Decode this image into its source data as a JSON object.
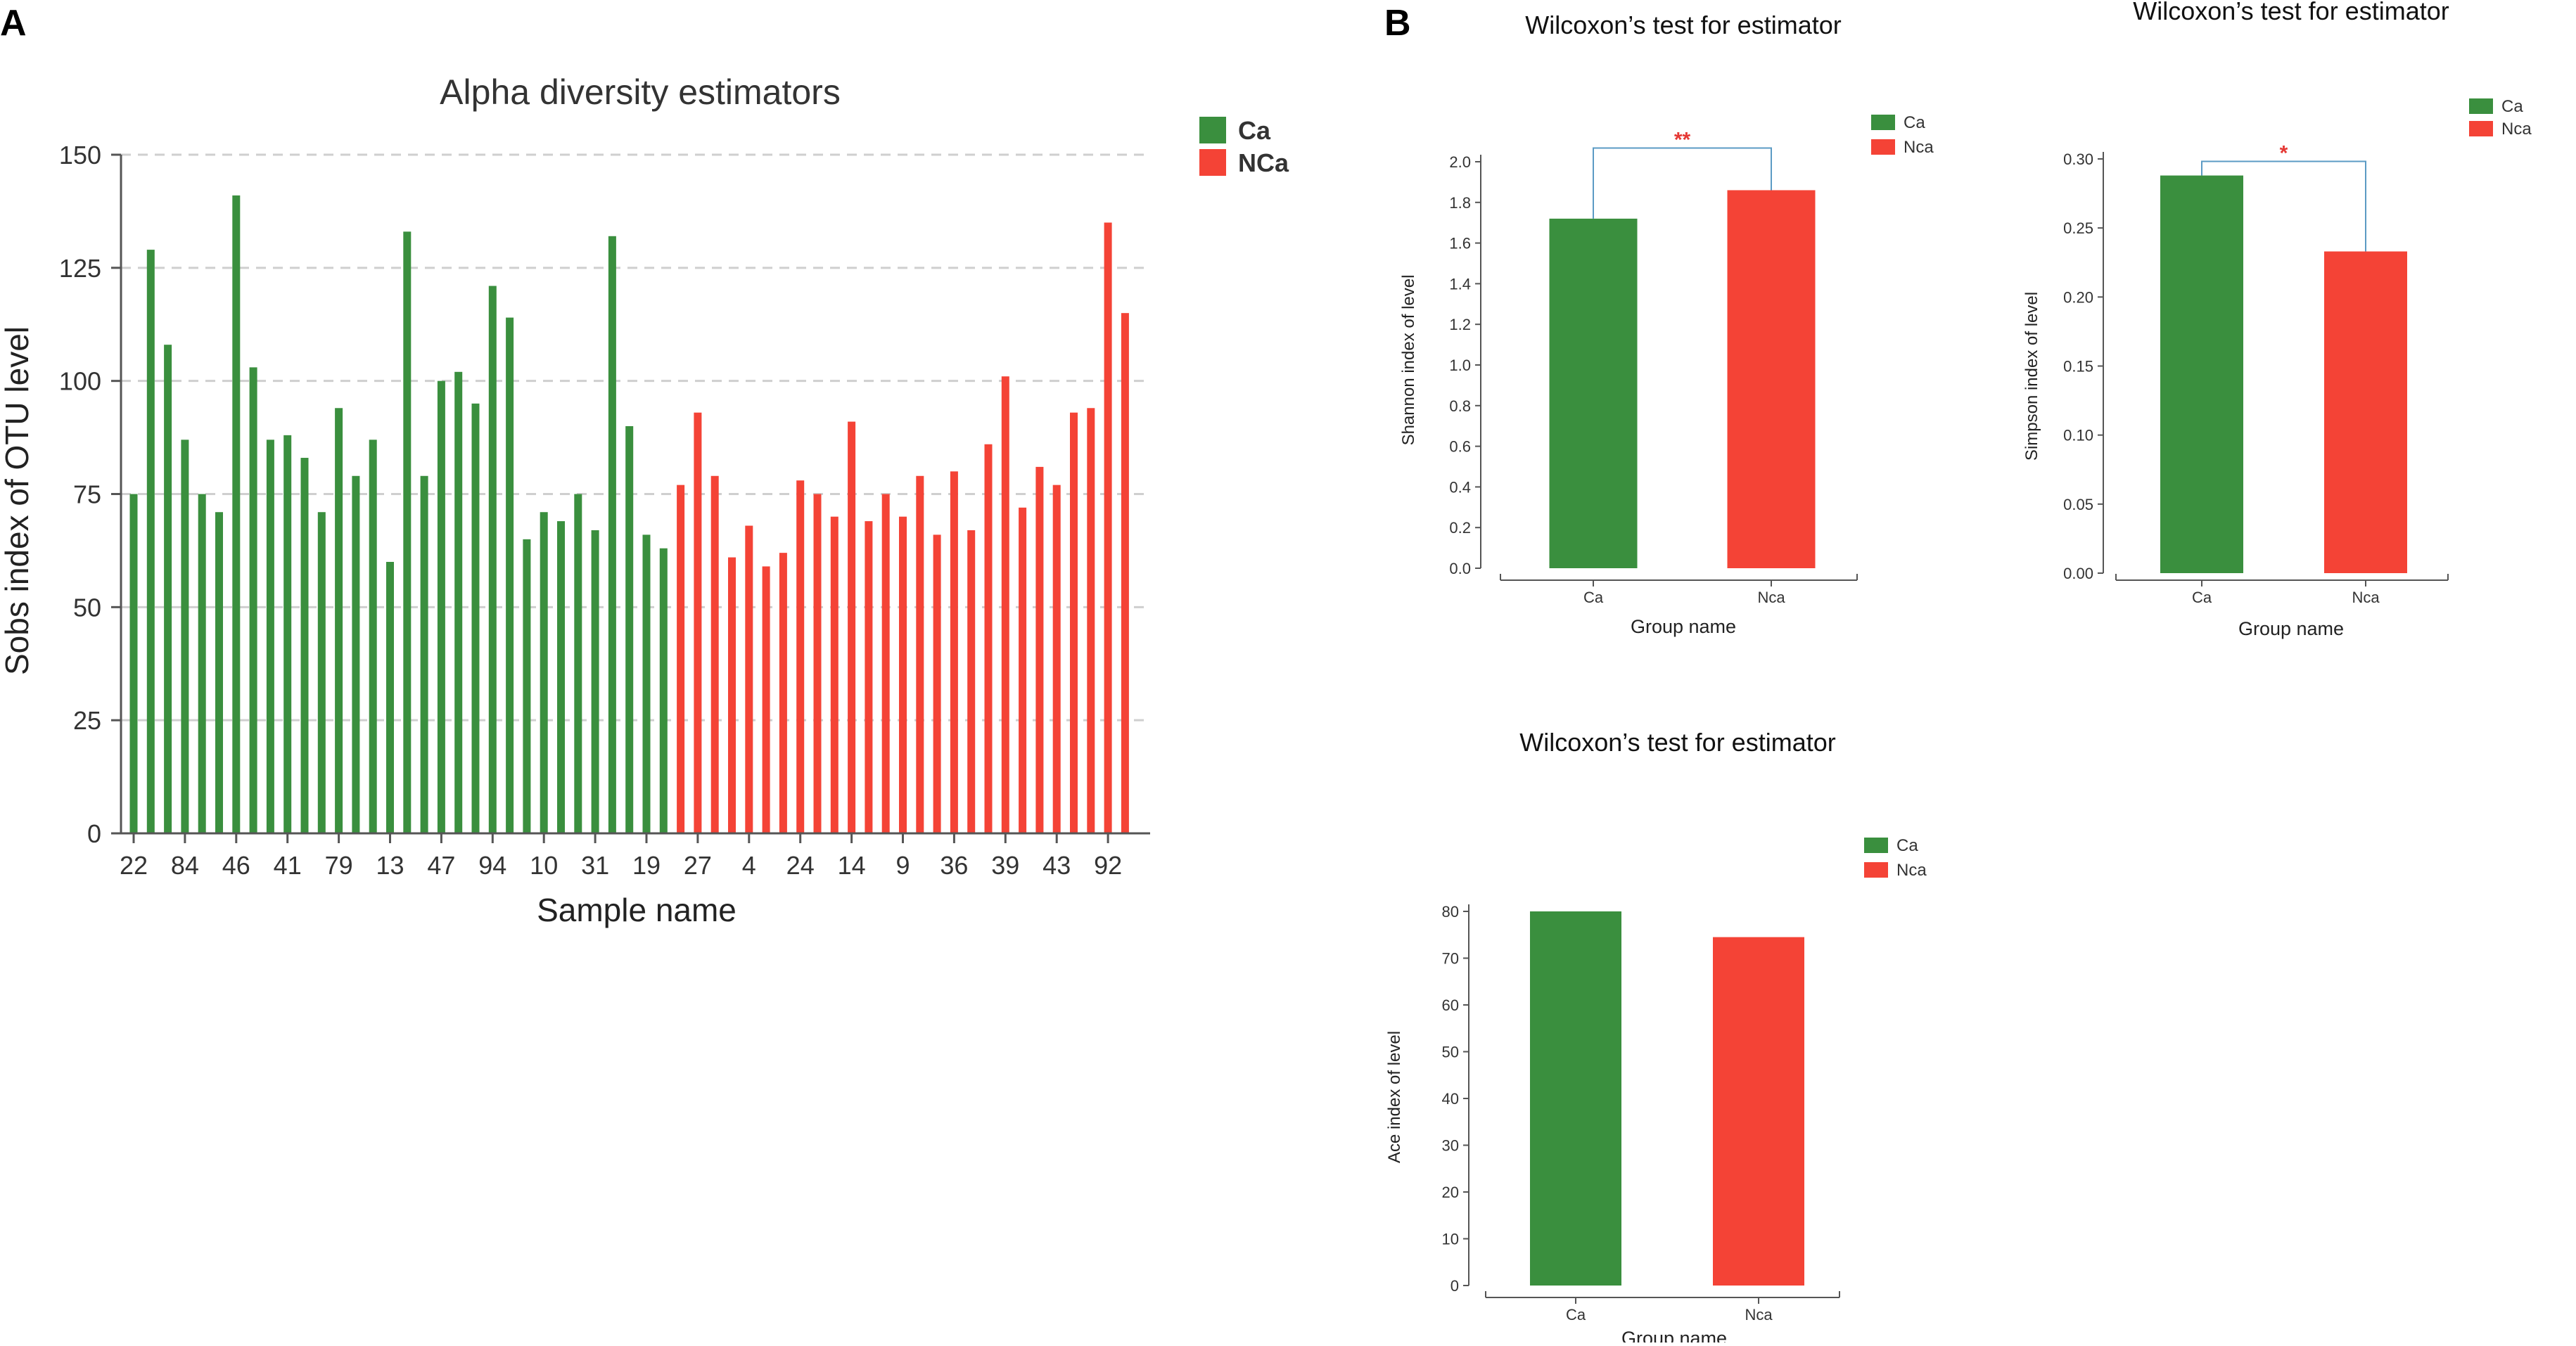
{
  "panel_labels": {
    "a": "A",
    "b": "B"
  },
  "colors": {
    "ca": "#3A8F3E",
    "nca": "#F44336",
    "sig": "#5B9BC4",
    "star": "#E53935",
    "axis": "#555555",
    "grid": "#CFCFCF"
  },
  "chart_data": [
    {
      "id": "alpha",
      "type": "bar",
      "title": "Alpha diversity estimators",
      "xlabel": "Sample name",
      "ylabel": "Sobs index of OTU level",
      "ylim": [
        0,
        150
      ],
      "yticks": [
        0,
        25,
        50,
        75,
        100,
        125,
        150
      ],
      "grid": true,
      "legend": [
        {
          "name": "Ca",
          "color": "#3A8F3E"
        },
        {
          "name": "NCa",
          "color": "#F44336"
        }
      ],
      "xtick_labels": [
        {
          "index": 0,
          "label": "22"
        },
        {
          "index": 3,
          "label": "84"
        },
        {
          "index": 6,
          "label": "46"
        },
        {
          "index": 9,
          "label": "41"
        },
        {
          "index": 12,
          "label": "79"
        },
        {
          "index": 15,
          "label": "13"
        },
        {
          "index": 18,
          "label": "47"
        },
        {
          "index": 21,
          "label": "94"
        },
        {
          "index": 24,
          "label": "10"
        },
        {
          "index": 27,
          "label": "31"
        },
        {
          "index": 30,
          "label": "19"
        },
        {
          "index": 33,
          "label": "27"
        },
        {
          "index": 36,
          "label": "4"
        },
        {
          "index": 39,
          "label": "24"
        },
        {
          "index": 42,
          "label": "14"
        },
        {
          "index": 45,
          "label": "9"
        },
        {
          "index": 48,
          "label": "36"
        },
        {
          "index": 51,
          "label": "39"
        },
        {
          "index": 54,
          "label": "43"
        },
        {
          "index": 57,
          "label": "92"
        }
      ],
      "series": [
        {
          "name": "Ca",
          "values": [
            75,
            129,
            108,
            87,
            75,
            71,
            141,
            103,
            87,
            88,
            83,
            71,
            94,
            79,
            87,
            60,
            133,
            79,
            100,
            102,
            95,
            121,
            114,
            65,
            71,
            69,
            75,
            67,
            132,
            90,
            66,
            63
          ]
        },
        {
          "name": "NCa",
          "values": [
            77,
            93,
            79,
            61,
            68,
            59,
            62,
            78,
            75,
            70,
            91,
            69,
            75,
            70,
            79,
            66,
            80,
            67,
            86,
            101,
            72,
            81,
            77,
            93,
            94,
            135,
            115
          ]
        }
      ]
    },
    {
      "id": "shannon",
      "type": "bar",
      "title": "Wilcoxon’s test for estimator",
      "xlabel": "Group name",
      "ylabel": "Shannon index of level",
      "ylim": [
        0,
        2.0
      ],
      "yticks": [
        "0.0",
        "0.2",
        "0.4",
        "0.6",
        "0.8",
        "1.0",
        "1.2",
        "1.4",
        "1.6",
        "1.8",
        "2.0"
      ],
      "categories": [
        "Ca",
        "Nca"
      ],
      "values": [
        1.72,
        1.86
      ],
      "legend": [
        {
          "name": "Ca",
          "color": "#3A8F3E"
        },
        {
          "name": "Nca",
          "color": "#F44336"
        }
      ],
      "significance": "**"
    },
    {
      "id": "simpson",
      "type": "bar",
      "title": "Wilcoxon’s test for estimator",
      "xlabel": "Group name",
      "ylabel": "Simpson index of level",
      "ylim": [
        0,
        0.3
      ],
      "yticks": [
        "0.00",
        "0.05",
        "0.10",
        "0.15",
        "0.20",
        "0.25",
        "0.30"
      ],
      "categories": [
        "Ca",
        "Nca"
      ],
      "values": [
        0.288,
        0.233
      ],
      "legend": [
        {
          "name": "Ca",
          "color": "#3A8F3E"
        },
        {
          "name": "Nca",
          "color": "#F44336"
        }
      ],
      "significance": "*"
    },
    {
      "id": "ace",
      "type": "bar",
      "title": "Wilcoxon’s test for estimator",
      "xlabel": "Group name",
      "ylabel": "Ace index of level",
      "ylim": [
        0,
        80
      ],
      "yticks": [
        "0",
        "10",
        "20",
        "30",
        "40",
        "50",
        "60",
        "70",
        "80"
      ],
      "categories": [
        "Ca",
        "Nca"
      ],
      "values": [
        80,
        74.5
      ],
      "legend": [
        {
          "name": "Ca",
          "color": "#3A8F3E"
        },
        {
          "name": "Nca",
          "color": "#F44336"
        }
      ],
      "significance": ""
    }
  ]
}
